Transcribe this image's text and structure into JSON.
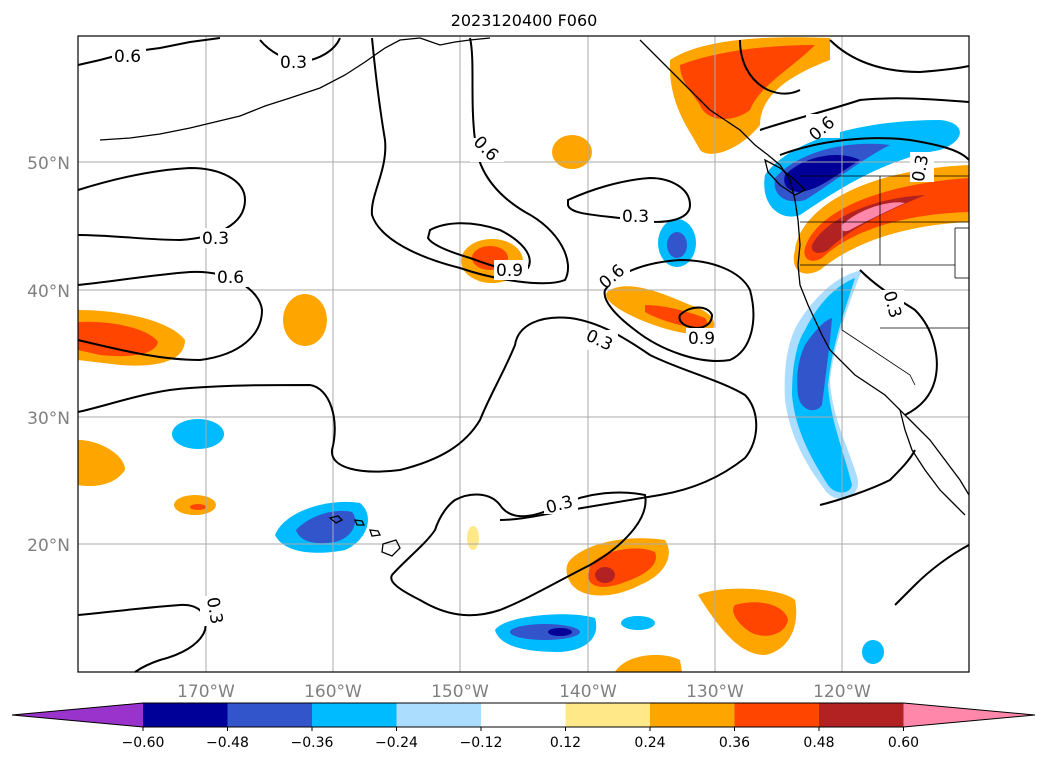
{
  "title": "2023120400 F060",
  "map": {
    "lat_labels": [
      "50°N",
      "40°N",
      "30°N",
      "20°N"
    ],
    "lon_labels": [
      "170°W",
      "160°W",
      "150°W",
      "140°W",
      "130°W",
      "120°W"
    ],
    "contour_labels": [
      "0.6",
      "0.3",
      "0.6",
      "0.3",
      "0.6",
      "0.9",
      "0.3",
      "0.6",
      "0.3",
      "0.9",
      "0.6",
      "0.3",
      "0.3",
      "0.3",
      "0.3"
    ],
    "label_color": "#808080"
  },
  "colorbar": {
    "ticks": [
      "−0.60",
      "−0.48",
      "−0.36",
      "−0.24",
      "−0.12",
      "0.12",
      "0.24",
      "0.36",
      "0.48",
      "0.60"
    ],
    "colors": [
      "#9933cc",
      "#000099",
      "#3355cc",
      "#00bbff",
      "#aaddff",
      "#ffffff",
      "#ffe888",
      "#ffa500",
      "#ff4500",
      "#b22222",
      "#ff88aa"
    ]
  }
}
